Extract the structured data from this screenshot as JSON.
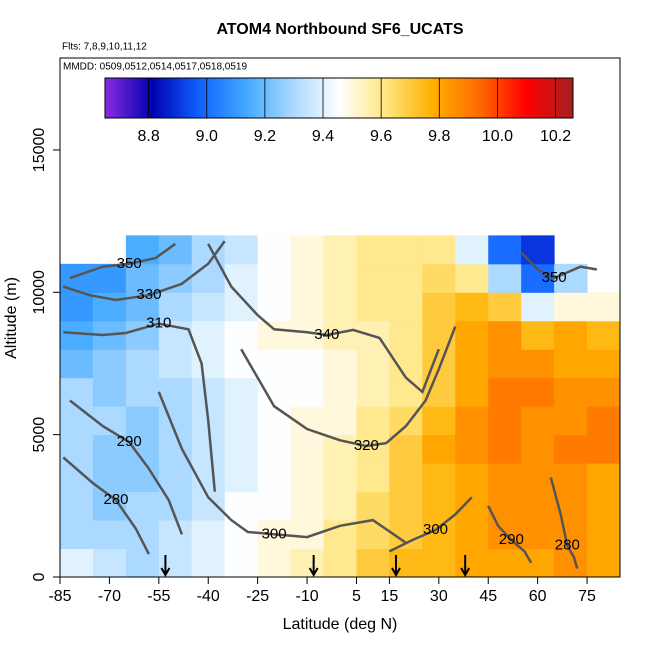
{
  "chart_data": {
    "type": "heatmap",
    "title": "ATOM4 Northbound SF6_UCATS",
    "subtitle": "Flts: 7,8,9,10,11,12",
    "note": "MMDD: 0509,0512,0514,0517,0518,0519",
    "x_label": "Latitude (deg N)",
    "y_label": "Altitude (m)",
    "xlim": [
      -85,
      85
    ],
    "xticks": [
      -85,
      -70,
      -55,
      -40,
      -25,
      -10,
      5,
      15,
      30,
      45,
      60,
      75
    ],
    "ylim": [
      0,
      18230
    ],
    "yticks": [
      0,
      5000,
      10000,
      15000
    ],
    "clim": [
      8.65,
      10.26
    ],
    "cticks": [
      {
        "value": 8.8,
        "label": "8.8"
      },
      {
        "value": 9.0,
        "label": "9.0"
      },
      {
        "value": 9.2,
        "label": "9.2"
      },
      {
        "value": 9.4,
        "label": "9.4"
      },
      {
        "value": 9.6,
        "label": "9.6"
      },
      {
        "value": 9.8,
        "label": "9.8"
      },
      {
        "value": 10.0,
        "label": "10.0"
      },
      {
        "value": 10.2,
        "label": "10.2"
      }
    ],
    "colormap": [
      "#8a2be2",
      "#0000b0",
      "#1060ff",
      "#40a8ff",
      "#a8d8ff",
      "#ffffff",
      "#ffe680",
      "#ffb000",
      "#ff6a00",
      "#ff0000",
      "#a52020"
    ],
    "lat_bins": [
      -85,
      -75,
      -65,
      -55,
      -45,
      -35,
      -25,
      -15,
      -5,
      5,
      15,
      25,
      35,
      45,
      55,
      65,
      75,
      85
    ],
    "alt_bins": [
      0,
      1000,
      2000,
      3000,
      4000,
      5000,
      6000,
      7000,
      8000,
      9000,
      10000,
      11000,
      12000
    ],
    "values": [
      [
        9.4,
        9.35,
        9.3,
        9.35,
        9.4,
        9.45,
        9.5,
        9.55,
        9.6,
        9.7,
        9.75,
        9.75,
        9.8,
        9.8,
        9.8,
        9.85,
        9.8
      ],
      [
        9.3,
        9.3,
        9.3,
        9.35,
        9.4,
        9.45,
        9.5,
        9.5,
        9.6,
        9.65,
        9.7,
        9.75,
        9.8,
        9.85,
        9.85,
        9.85,
        9.8
      ],
      [
        9.3,
        9.25,
        9.3,
        9.3,
        9.35,
        9.45,
        9.45,
        9.5,
        9.55,
        9.65,
        9.7,
        9.75,
        9.8,
        9.85,
        9.85,
        9.85,
        9.8
      ],
      [
        9.3,
        9.25,
        9.25,
        9.3,
        9.35,
        9.4,
        9.45,
        9.5,
        9.55,
        9.6,
        9.7,
        9.75,
        9.8,
        9.85,
        9.85,
        9.85,
        9.8
      ],
      [
        9.3,
        9.25,
        9.25,
        9.3,
        9.35,
        9.4,
        9.45,
        9.5,
        9.55,
        9.6,
        9.7,
        9.8,
        9.85,
        9.9,
        9.85,
        9.9,
        9.9
      ],
      [
        9.3,
        9.3,
        9.25,
        9.3,
        9.35,
        9.4,
        9.45,
        9.5,
        9.5,
        9.6,
        9.65,
        9.75,
        9.85,
        9.9,
        9.85,
        9.85,
        9.9
      ],
      [
        9.3,
        9.25,
        9.3,
        9.3,
        9.35,
        9.4,
        9.45,
        9.45,
        9.5,
        9.55,
        9.6,
        9.7,
        9.8,
        9.9,
        9.9,
        9.85,
        9.85
      ],
      [
        9.2,
        9.25,
        9.3,
        9.35,
        9.4,
        9.45,
        9.45,
        9.45,
        9.5,
        9.55,
        9.6,
        9.7,
        9.8,
        9.85,
        9.85,
        9.8,
        9.8
      ],
      [
        9.15,
        9.2,
        9.25,
        9.35,
        9.4,
        9.45,
        9.5,
        9.5,
        9.55,
        9.55,
        9.6,
        9.7,
        9.8,
        9.85,
        9.75,
        9.8,
        9.75
      ],
      [
        9.1,
        9.15,
        9.2,
        9.3,
        9.35,
        9.4,
        9.45,
        9.5,
        9.55,
        9.6,
        9.6,
        9.7,
        9.75,
        9.7,
        9.4,
        9.5,
        9.5
      ],
      [
        9.1,
        9.1,
        9.2,
        9.25,
        9.3,
        9.4,
        9.45,
        9.5,
        9.55,
        9.6,
        9.6,
        9.65,
        9.6,
        9.3,
        9.0,
        9.3,
        null
      ],
      [
        null,
        null,
        9.15,
        9.2,
        9.3,
        9.35,
        9.45,
        9.5,
        9.55,
        9.6,
        9.6,
        9.6,
        9.4,
        9.0,
        8.9,
        null,
        null
      ]
    ],
    "contour_color": "#555555",
    "contours": [
      {
        "label": 350,
        "x": [
          -82,
          -72,
          -64,
          -56,
          -50
        ],
        "y": [
          10500,
          10900,
          11000,
          11200,
          11700
        ]
      },
      {
        "label": 330,
        "x": [
          -84,
          -76,
          -68,
          -58,
          -48,
          -40,
          -35
        ],
        "y": [
          10200,
          9900,
          9730,
          9900,
          10300,
          11000,
          11800
        ]
      },
      {
        "label": 310,
        "x": [
          -84,
          -72,
          -65,
          -55,
          -46,
          -42,
          -40,
          -38
        ],
        "y": [
          8600,
          8500,
          8570,
          8900,
          8700,
          7500,
          5500,
          3000
        ]
      },
      {
        "label": 290,
        "x": [
          -82,
          -72,
          -64,
          -58,
          -52,
          -48
        ],
        "y": [
          6200,
          5300,
          4740,
          3800,
          2700,
          1500
        ]
      },
      {
        "label": 280,
        "x": [
          -84,
          -75,
          -68,
          -62,
          -58
        ],
        "y": [
          4200,
          3300,
          2700,
          1700,
          800
        ]
      },
      {
        "label": 300,
        "x": [
          -55,
          -48,
          -40,
          -33,
          -28,
          -20,
          -10,
          0,
          10,
          15,
          20
        ],
        "y": [
          6500,
          4500,
          2800,
          2000,
          1580,
          1500,
          1400,
          1800,
          2000,
          1600,
          1200
        ]
      },
      {
        "label": 300,
        "x": [
          15,
          22,
          29,
          35,
          40
        ],
        "y": [
          900,
          1300,
          1650,
          2200,
          2800
        ]
      },
      {
        "label": 340,
        "x": [
          -40,
          -33,
          -25,
          -20,
          -10,
          -4,
          4,
          12,
          20,
          25,
          30
        ],
        "y": [
          11700,
          10200,
          9200,
          8700,
          8600,
          8500,
          8680,
          8400,
          7000,
          6500,
          8000
        ]
      },
      {
        "label": 320,
        "x": [
          -30,
          -20,
          -10,
          0,
          8,
          14,
          20,
          26,
          30,
          35
        ],
        "y": [
          8000,
          6000,
          5200,
          4800,
          4600,
          4700,
          5300,
          6200,
          7300,
          8800
        ]
      },
      {
        "label": 290,
        "x": [
          45,
          48,
          52,
          56,
          58
        ],
        "y": [
          2500,
          1800,
          1300,
          900,
          500
        ]
      },
      {
        "label": 280,
        "x": [
          64,
          67,
          69,
          71,
          72
        ],
        "y": [
          3500,
          2200,
          1100,
          700,
          300
        ]
      },
      {
        "label": 350,
        "x": [
          55,
          60,
          65,
          69,
          73,
          78
        ],
        "y": [
          11400,
          10800,
          10500,
          10700,
          10900,
          10800
        ]
      }
    ],
    "arrow_lats": [
      -53,
      -8,
      17,
      38
    ]
  }
}
